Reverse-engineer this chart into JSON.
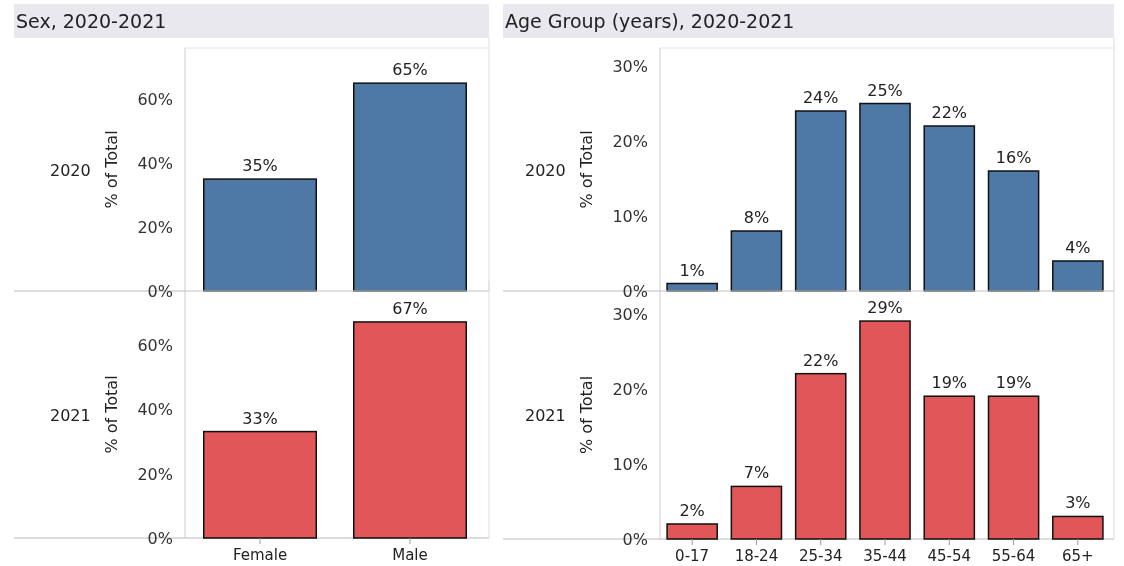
{
  "chart_data": [
    {
      "type": "bar",
      "title": "Sex, 2020-2021",
      "annotations": [
        "2020"
      ],
      "ylabel": "% of Total",
      "categories": [
        null,
        null
      ],
      "values": [
        35,
        65
      ],
      "value_labels": [
        "35%",
        "65%"
      ],
      "color": "#4e79a7",
      "ylim": [
        0,
        76
      ],
      "yticks": [
        {
          "value": 0,
          "label": "0%"
        },
        {
          "value": 20,
          "label": "20%"
        },
        {
          "value": 40,
          "label": "40%"
        },
        {
          "value": 60,
          "label": "60%"
        }
      ],
      "tick_labels": "y",
      "grid": false
    },
    {
      "type": "bar",
      "title": "Age Group (years), 2020-2021",
      "annotations": [
        "2020"
      ],
      "ylabel": "% of Total",
      "categories": [
        null,
        null,
        null,
        null,
        null,
        null,
        null
      ],
      "values": [
        1,
        8,
        24,
        25,
        22,
        16,
        4
      ],
      "value_labels": [
        "1%",
        "8%",
        "24%",
        "25%",
        "22%",
        "16%",
        "4%"
      ],
      "color": "#4e79a7",
      "ylim": [
        0,
        32.4
      ],
      "yticks": [
        {
          "value": 0,
          "label": "0%"
        },
        {
          "value": 10,
          "label": "10%"
        },
        {
          "value": 20,
          "label": "20%"
        },
        {
          "value": 30,
          "label": "30%"
        }
      ],
      "tick_labels": "y",
      "grid": false
    },
    {
      "type": "bar",
      "annotations": [
        "2021"
      ],
      "ylabel": "% of Total",
      "categories": [
        "Female",
        "Male"
      ],
      "values": [
        33,
        67
      ],
      "value_labels": [
        "33%",
        "67%"
      ],
      "color": "#e15759",
      "ylim": [
        0,
        76.6
      ],
      "yticks": [
        {
          "value": 0,
          "label": "0%"
        },
        {
          "value": 20,
          "label": "20%"
        },
        {
          "value": 40,
          "label": "40%"
        },
        {
          "value": 60,
          "label": "60%"
        }
      ],
      "grid": false
    },
    {
      "type": "bar",
      "annotations": [
        "2021"
      ],
      "ylabel": "% of Total",
      "categories": [
        "0-17",
        "18-24",
        "25-34",
        "35-44",
        "45-54",
        "55-64",
        "65+"
      ],
      "values": [
        2,
        7,
        22,
        29,
        19,
        19,
        3
      ],
      "value_labels": [
        "2%",
        "7%",
        "22%",
        "29%",
        "19%",
        "19%",
        "3%"
      ],
      "color": "#e15759",
      "ylim": [
        0,
        33
      ],
      "yticks": [
        {
          "value": 0,
          "label": "0%"
        },
        {
          "value": 10,
          "label": "10%"
        },
        {
          "value": 20,
          "label": "20%"
        },
        {
          "value": 30,
          "label": "30%"
        }
      ],
      "grid": false
    }
  ]
}
